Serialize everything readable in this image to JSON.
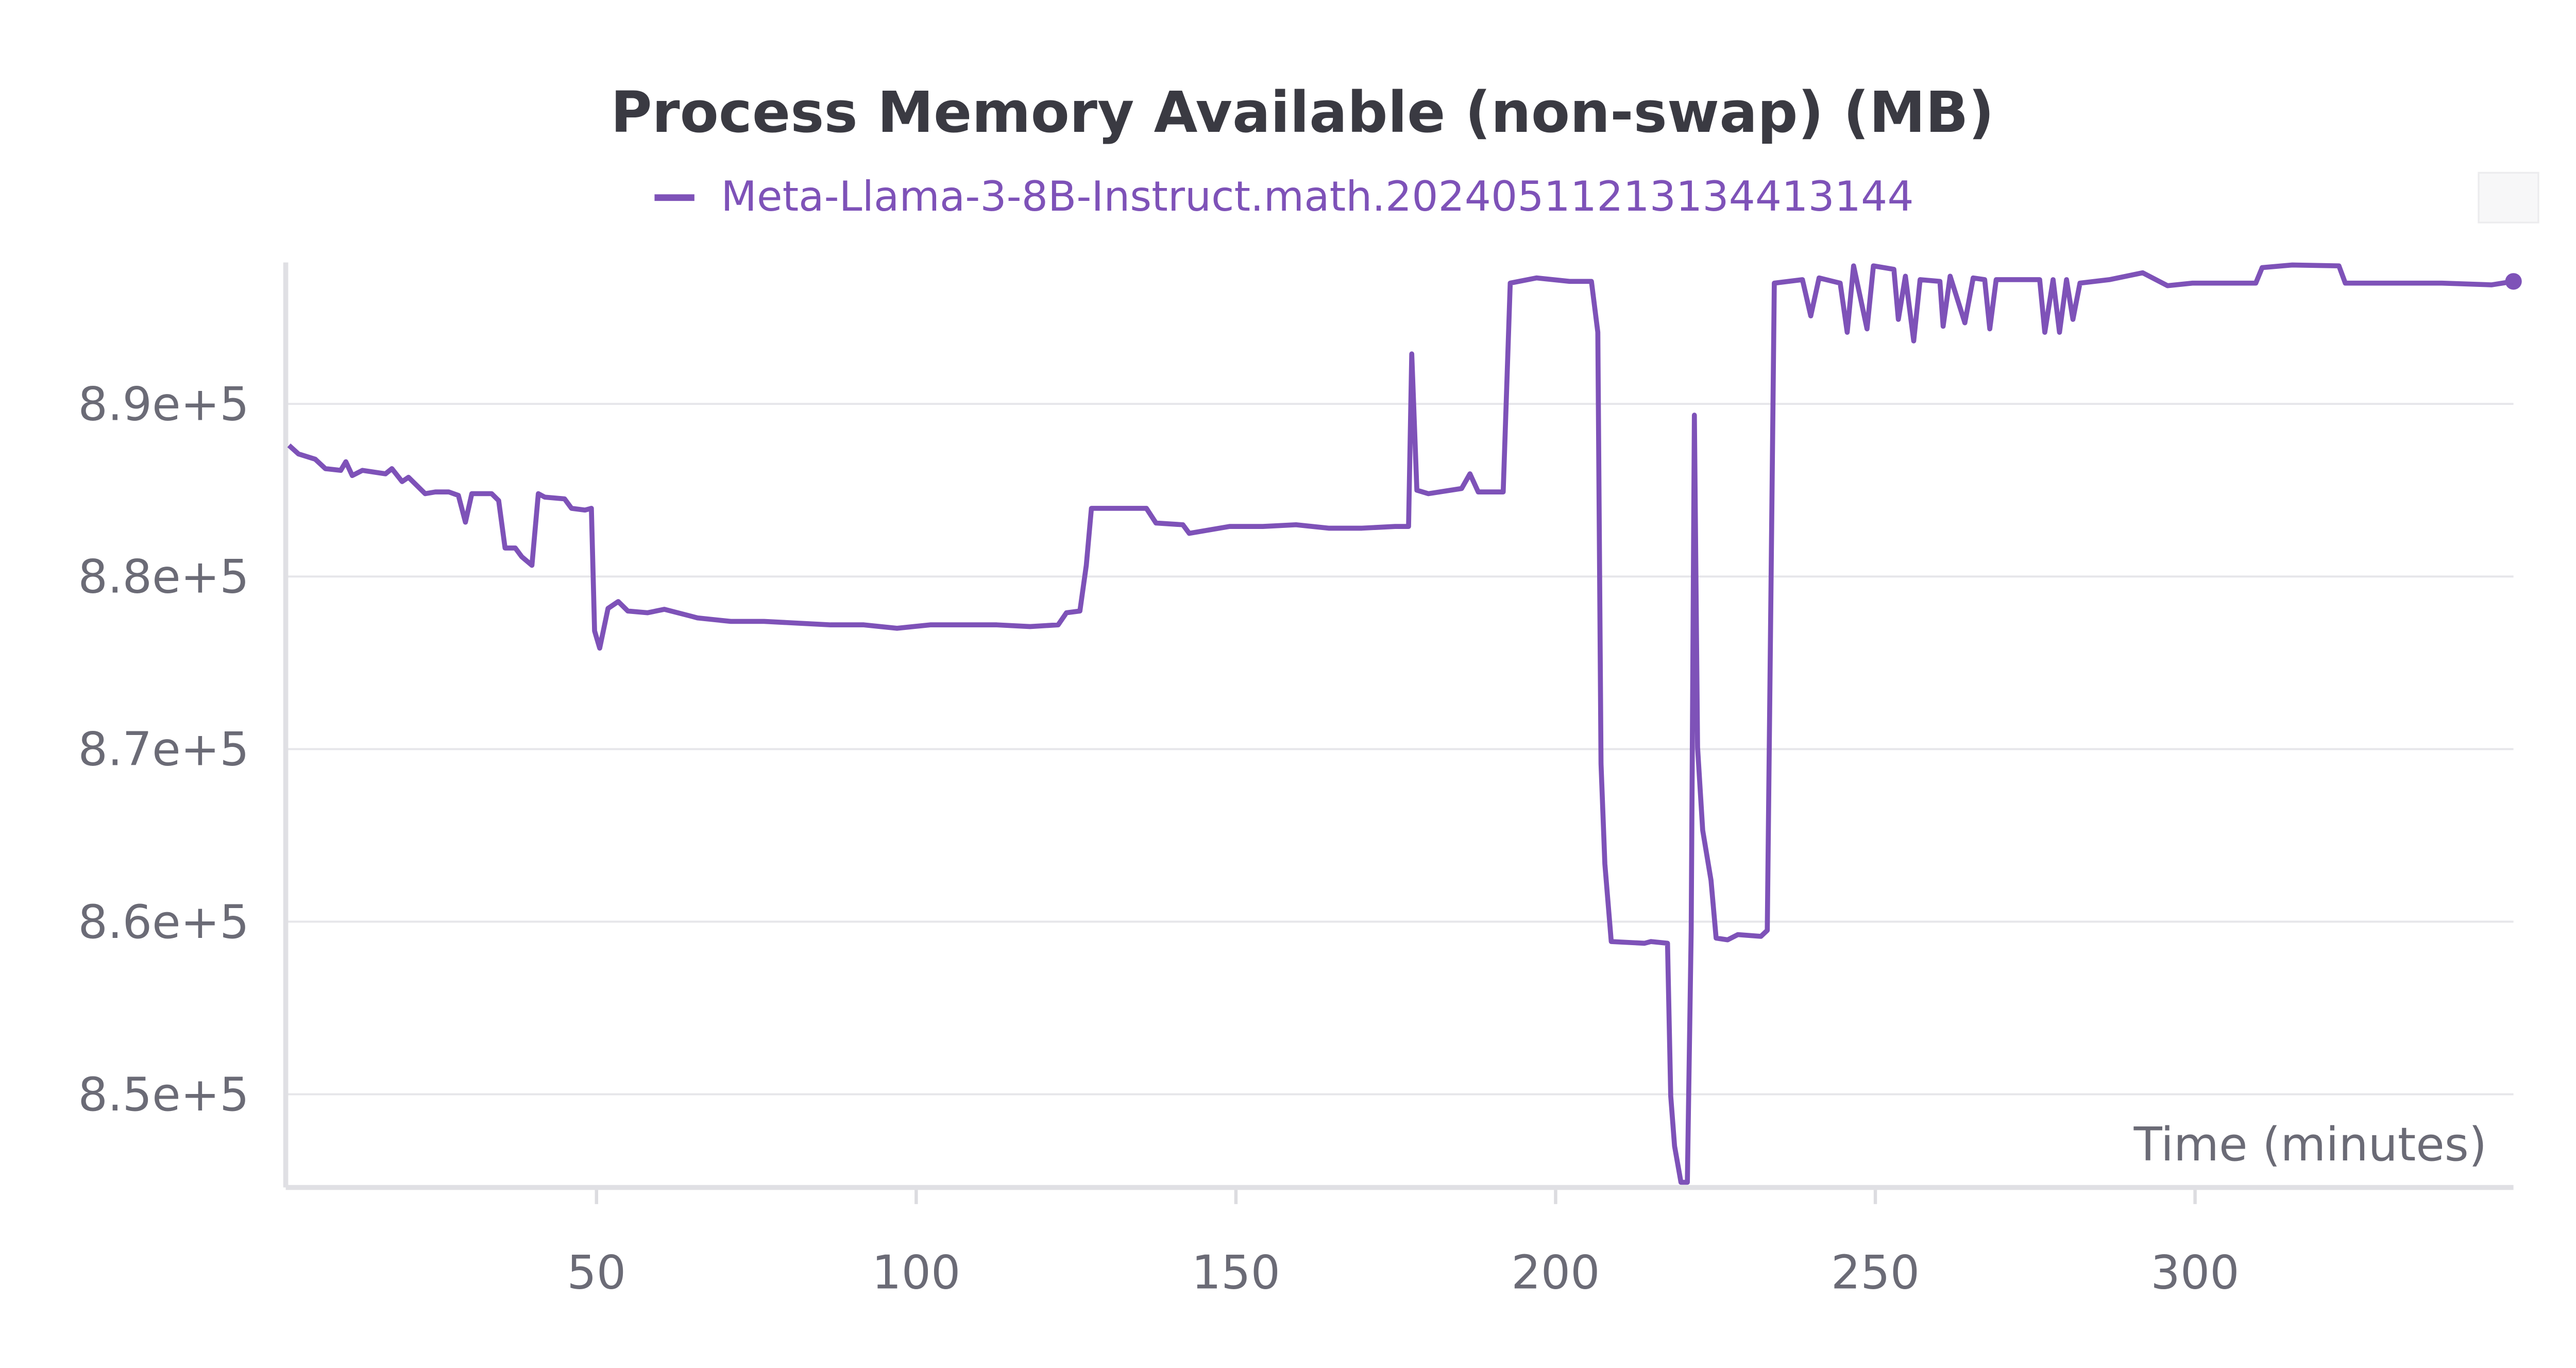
{
  "chart_data": {
    "type": "line",
    "title": "Process Memory Available (non-swap) (MB)",
    "x_label": "Time (minutes)",
    "xlim": [
      1.4,
      349.8
    ],
    "xticks": [
      50,
      100,
      150,
      200,
      250,
      300
    ],
    "ylim": [
      844600,
      898200
    ],
    "yticks": [
      {
        "value": 850000,
        "label": "8.5e+5"
      },
      {
        "value": 860000,
        "label": "8.6e+5"
      },
      {
        "value": 870000,
        "label": "8.7e+5"
      },
      {
        "value": 880000,
        "label": "8.8e+5"
      },
      {
        "value": 890000,
        "label": "8.9e+5"
      }
    ],
    "grid": true,
    "x": [
      1.9,
      3.4,
      6,
      7.6,
      10,
      10.8,
      11.8,
      13.4,
      17,
      18,
      19.6,
      20.6,
      23.2,
      24.8,
      26.9,
      28.4,
      29.5,
      30.5,
      33.6,
      34.7,
      35.7,
      37.3,
      38.3,
      39.9,
      40.9,
      41.9,
      45,
      46.1,
      48.2,
      49.2,
      49.7,
      50.5,
      51.8,
      53.4,
      54.9,
      58,
      60.6,
      64.8,
      65.8,
      71,
      76.2,
      81.4,
      86.6,
      91.8,
      97,
      102.2,
      107.4,
      112.6,
      117.8,
      122.2,
      123.5,
      125.6,
      126.6,
      127.4,
      130.8,
      136,
      137.5,
      141.7,
      142.7,
      149,
      154.2,
      159.4,
      164.5,
      169.7,
      174.9,
      177,
      177.5,
      178.3,
      180.1,
      185.3,
      186.6,
      187.9,
      191.8,
      192.9,
      197,
      202.2,
      205.6,
      206.6,
      207.1,
      207.7,
      208.7,
      213.9,
      214.9,
      217.5,
      218,
      218.6,
      219.6,
      220.6,
      221.2,
      221.7,
      222.2,
      223,
      224.3,
      225.1,
      226.9,
      228.5,
      232.1,
      233.1,
      234.2,
      238.6,
      239.9,
      241.2,
      244.5,
      245.6,
      246.6,
      248.7,
      249.7,
      252.9,
      253.6,
      254.7,
      256,
      257,
      260.1,
      260.6,
      261.7,
      264,
      265.3,
      267.1,
      267.9,
      268.9,
      275.7,
      276.5,
      277.8,
      278.8,
      279.9,
      280.9,
      282,
      286.6,
      291.8,
      295.7,
      299.6,
      309.5,
      310.5,
      315.2,
      322.5,
      323.5,
      330.8,
      338.6,
      346.4,
      349.8
    ],
    "series": [
      {
        "name": "Meta-Llama-3-8B-Instruct.math.20240511213134413144",
        "color": "#7e52b8",
        "values": [
          887600,
          887100,
          886800,
          886250,
          886150,
          886650,
          885850,
          886150,
          885950,
          886250,
          885500,
          885750,
          884800,
          884900,
          884900,
          884700,
          883150,
          884800,
          884800,
          884400,
          881650,
          881650,
          881150,
          880650,
          884800,
          884600,
          884500,
          883950,
          883850,
          883950,
          876850,
          875850,
          878150,
          878550,
          878000,
          877900,
          878100,
          877700,
          877600,
          877400,
          877400,
          877300,
          877200,
          877200,
          877000,
          877200,
          877200,
          877200,
          877100,
          877200,
          877900,
          878000,
          880650,
          883950,
          883950,
          883950,
          883100,
          883000,
          882500,
          882900,
          882900,
          883000,
          882800,
          882800,
          882900,
          882900,
          892900,
          885000,
          884800,
          885100,
          885950,
          884900,
          884900,
          897000,
          897300,
          897100,
          897100,
          894150,
          869150,
          863350,
          858850,
          858750,
          858850,
          858750,
          849900,
          847000,
          844900,
          844900,
          859500,
          889350,
          870100,
          865300,
          862400,
          859050,
          858950,
          859250,
          859150,
          859500,
          897000,
          897200,
          895100,
          897300,
          897000,
          894150,
          898000,
          894350,
          898000,
          897800,
          894900,
          897400,
          893650,
          897200,
          897100,
          894500,
          897400,
          894700,
          897300,
          897200,
          894350,
          897200,
          897200,
          894150,
          897200,
          894150,
          897200,
          894900,
          897000,
          897200,
          897600,
          896850,
          897000,
          897000,
          897900,
          898050,
          898000,
          897000,
          897000,
          897000,
          896900,
          897100
        ]
      }
    ]
  }
}
